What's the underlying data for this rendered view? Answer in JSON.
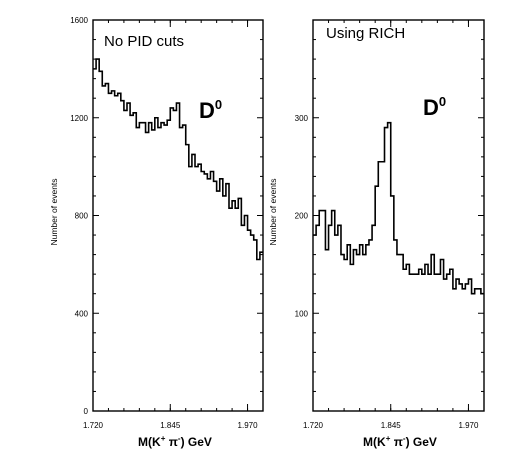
{
  "chart_data": [
    {
      "type": "line",
      "step": true,
      "title": "No PID cuts",
      "peak_label": "D",
      "peak_label_sup": "0",
      "ylabel": "Number of events",
      "xlabel_parts": [
        "M(K",
        "+",
        " π",
        "-",
        ") GeV"
      ],
      "xlim": [
        1.72,
        1.995
      ],
      "ylim": [
        0,
        1600
      ],
      "xticks": [
        1.72,
        1.845,
        1.97
      ],
      "xtick_labels": [
        "1.720",
        "1.845",
        "1.970"
      ],
      "yticks": [
        0,
        400,
        800,
        1200,
        1600
      ],
      "ytick_labels": [
        "0",
        "400",
        "800",
        "1200",
        "1600"
      ],
      "grid": false,
      "bin_edges": [
        1.72,
        1.725,
        1.73,
        1.735,
        1.74,
        1.745,
        1.75,
        1.755,
        1.76,
        1.765,
        1.77,
        1.775,
        1.78,
        1.785,
        1.79,
        1.795,
        1.8,
        1.805,
        1.81,
        1.815,
        1.82,
        1.825,
        1.83,
        1.835,
        1.84,
        1.845,
        1.85,
        1.855,
        1.86,
        1.865,
        1.87,
        1.875,
        1.88,
        1.885,
        1.89,
        1.895,
        1.9,
        1.905,
        1.91,
        1.915,
        1.92,
        1.925,
        1.93,
        1.935,
        1.94,
        1.945,
        1.95,
        1.955,
        1.96,
        1.965,
        1.97,
        1.975,
        1.98,
        1.985,
        1.99,
        1.995
      ],
      "values": [
        1400,
        1440,
        1390,
        1330,
        1340,
        1300,
        1310,
        1290,
        1300,
        1270,
        1230,
        1260,
        1210,
        1220,
        1160,
        1180,
        1180,
        1140,
        1180,
        1150,
        1200,
        1160,
        1180,
        1170,
        1190,
        1240,
        1230,
        1260,
        1160,
        1170,
        1090,
        1000,
        1050,
        1000,
        1010,
        980,
        970,
        950,
        980,
        940,
        900,
        950,
        880,
        930,
        830,
        860,
        830,
        870,
        760,
        800,
        740,
        720,
        700,
        620,
        650
      ]
    },
    {
      "type": "line",
      "step": true,
      "title": "Using RICH",
      "peak_label": "D",
      "peak_label_sup": "0",
      "ylabel": "Number of events",
      "xlabel_parts": [
        "M(K",
        "+",
        " π",
        "-",
        ") GeV"
      ],
      "xlim": [
        1.72,
        1.995
      ],
      "ylim": [
        0,
        400
      ],
      "xticks": [
        1.72,
        1.845,
        1.97
      ],
      "xtick_labels": [
        "1.720",
        "1.845",
        "1.970"
      ],
      "yticks": [
        100,
        200,
        300
      ],
      "ytick_labels": [
        "100",
        "200",
        "300"
      ],
      "grid": false,
      "bin_edges": [
        1.72,
        1.725,
        1.73,
        1.735,
        1.74,
        1.745,
        1.75,
        1.755,
        1.76,
        1.765,
        1.77,
        1.775,
        1.78,
        1.785,
        1.79,
        1.795,
        1.8,
        1.805,
        1.81,
        1.815,
        1.82,
        1.825,
        1.83,
        1.835,
        1.84,
        1.845,
        1.85,
        1.855,
        1.86,
        1.865,
        1.87,
        1.875,
        1.88,
        1.885,
        1.89,
        1.895,
        1.9,
        1.905,
        1.91,
        1.915,
        1.92,
        1.925,
        1.93,
        1.935,
        1.94,
        1.945,
        1.95,
        1.955,
        1.96,
        1.965,
        1.97,
        1.975,
        1.98,
        1.985,
        1.99,
        1.995
      ],
      "values": [
        180,
        190,
        205,
        205,
        165,
        190,
        205,
        180,
        190,
        160,
        155,
        170,
        150,
        165,
        160,
        170,
        160,
        170,
        175,
        190,
        230,
        255,
        255,
        290,
        295,
        220,
        175,
        160,
        160,
        145,
        150,
        140,
        140,
        140,
        145,
        140,
        150,
        140,
        160,
        140,
        140,
        155,
        135,
        140,
        145,
        125,
        135,
        130,
        125,
        130,
        135,
        120,
        125,
        125,
        120
      ]
    }
  ]
}
